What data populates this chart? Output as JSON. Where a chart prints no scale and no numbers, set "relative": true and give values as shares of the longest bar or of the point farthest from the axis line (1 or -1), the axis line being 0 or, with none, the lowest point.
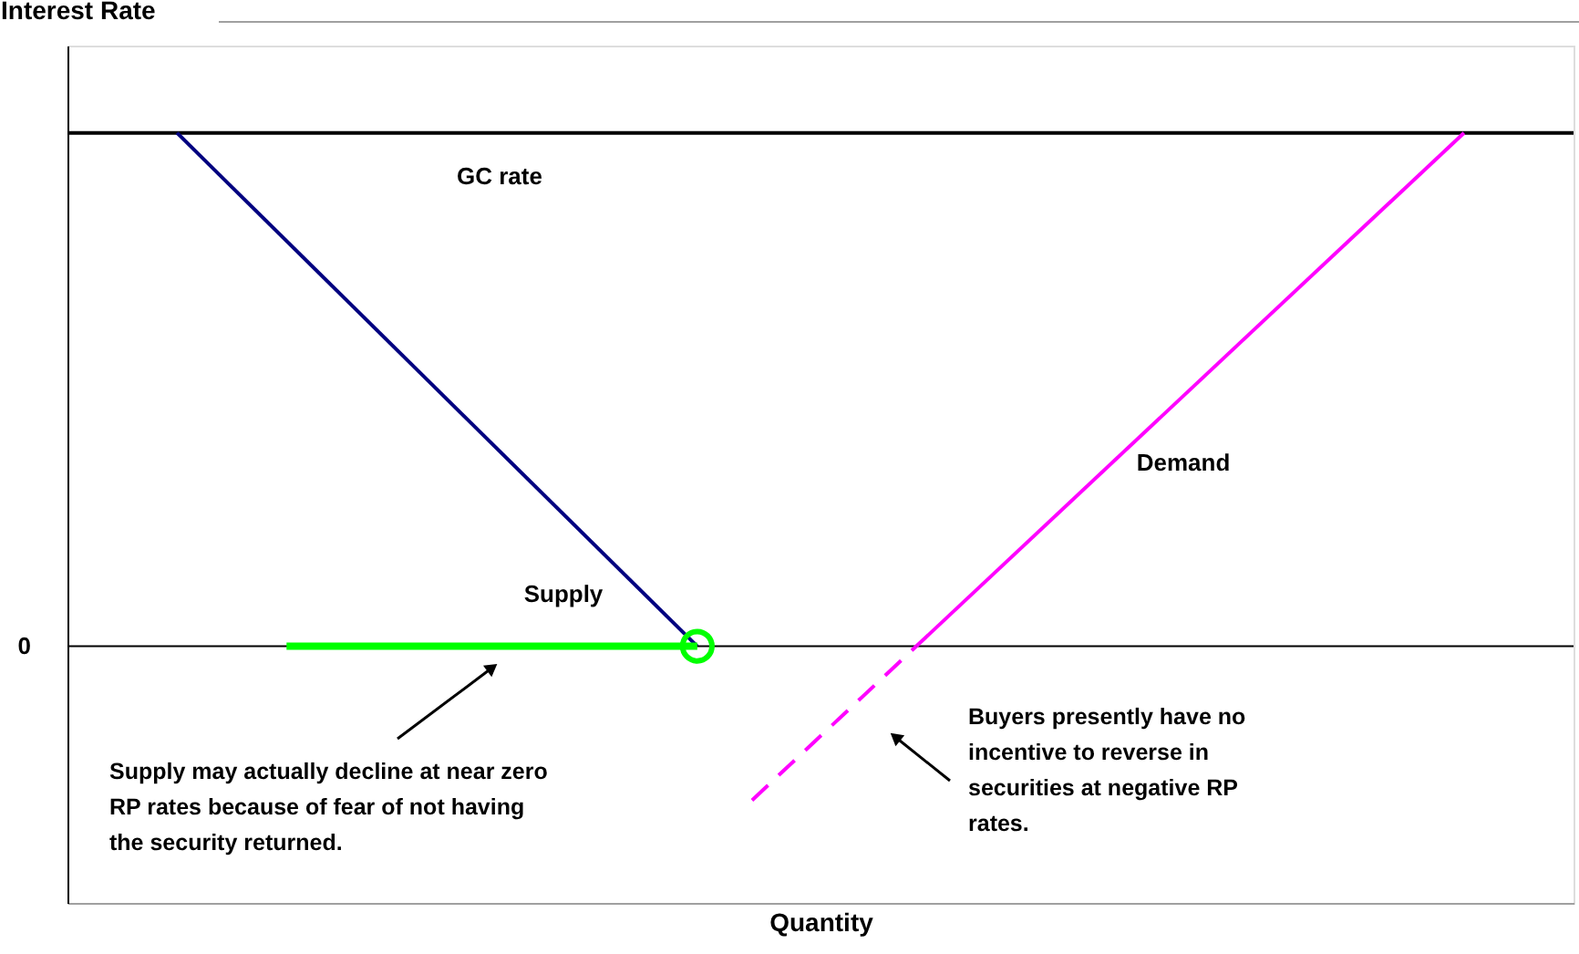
{
  "chart_data": {
    "type": "line",
    "relative": true,
    "ylabel": "Interest Rate",
    "xlabel": "Quantity",
    "grid": false,
    "legend": false,
    "tick_labels": "y",
    "categories": [
      null,
      null,
      null,
      null,
      null,
      null,
      null,
      null,
      null,
      null,
      null,
      null,
      null,
      null,
      null,
      null,
      null,
      null,
      null,
      null,
      null,
      null,
      null,
      null,
      null,
      null,
      null,
      null,
      null,
      null,
      null,
      null,
      null,
      null,
      null,
      null,
      null,
      null,
      null,
      null,
      null,
      null,
      null,
      null,
      null,
      null,
      null,
      null,
      null,
      null,
      null,
      null,
      null,
      null,
      null,
      null
    ],
    "ref_lines": [
      {
        "axis": "y",
        "value": 0,
        "label": "0",
        "color": "#000000"
      }
    ],
    "series": [
      {
        "name": "GC rate",
        "color": "#000000",
        "line_style": "solid",
        "values": [
          1,
          1,
          1,
          1,
          1,
          1,
          1,
          1,
          1,
          1,
          1,
          1,
          1,
          1,
          1,
          1,
          1,
          1,
          1,
          1,
          1,
          1,
          1,
          1,
          1,
          1,
          1,
          1,
          1,
          1,
          1,
          1,
          1,
          1,
          1,
          1,
          1,
          1,
          1,
          1,
          1,
          1,
          1,
          1,
          1,
          1,
          1,
          1,
          1,
          1,
          1,
          1,
          1,
          1,
          1,
          1
        ]
      },
      {
        "name": "Supply",
        "color": "#000080",
        "line_style": "solid",
        "values": [
          null,
          null,
          null,
          null,
          1,
          null,
          null,
          null,
          null,
          null,
          null,
          null,
          null,
          null,
          null,
          null,
          null,
          null,
          null,
          null,
          null,
          null,
          null,
          0,
          null,
          null,
          null,
          null,
          null,
          null,
          null,
          null,
          null,
          null,
          null,
          null,
          null,
          null,
          null,
          null,
          null,
          null,
          null,
          null,
          null,
          null,
          null,
          null,
          null,
          null,
          null,
          null,
          null,
          null,
          null,
          null
        ]
      },
      {
        "name": "Demand",
        "color": "#ff00ff",
        "line_style": "solid",
        "values": [
          null,
          null,
          null,
          null,
          null,
          null,
          null,
          null,
          null,
          null,
          null,
          null,
          null,
          null,
          null,
          null,
          null,
          null,
          null,
          null,
          null,
          null,
          null,
          null,
          null,
          null,
          null,
          null,
          null,
          null,
          null,
          0,
          null,
          null,
          null,
          null,
          null,
          null,
          null,
          null,
          null,
          null,
          null,
          null,
          null,
          null,
          null,
          null,
          null,
          null,
          null,
          1,
          null,
          null,
          null,
          null
        ]
      },
      {
        "color": "#ff00ff",
        "line_style": "dashed",
        "values": [
          null,
          null,
          null,
          null,
          null,
          null,
          null,
          null,
          null,
          null,
          null,
          null,
          null,
          null,
          null,
          null,
          null,
          null,
          null,
          null,
          null,
          null,
          null,
          null,
          null,
          -0.3,
          null,
          null,
          null,
          null,
          null,
          0,
          null,
          null,
          null,
          null,
          null,
          null,
          null,
          null,
          null,
          null,
          null,
          null,
          null,
          null,
          null,
          null,
          null,
          null,
          null,
          null,
          null,
          null,
          null,
          null
        ]
      },
      {
        "color": "#00ff00",
        "line_style": "solid",
        "marker": "circle",
        "values": [
          null,
          null,
          null,
          null,
          null,
          null,
          null,
          null,
          0,
          null,
          null,
          null,
          null,
          null,
          null,
          null,
          null,
          null,
          null,
          null,
          null,
          null,
          null,
          0,
          null,
          null,
          null,
          null,
          null,
          null,
          null,
          null,
          null,
          null,
          null,
          null,
          null,
          null,
          null,
          null,
          null,
          null,
          null,
          null,
          null,
          null,
          null,
          null,
          null,
          null,
          null,
          null,
          null,
          null,
          null,
          null
        ]
      }
    ],
    "annotations": [
      "Supply may actually decline at near zero RP rates because of fear of not having the security returned.",
      "Buyers presently have no incentive to reverse in securities at negative RP rates."
    ]
  }
}
